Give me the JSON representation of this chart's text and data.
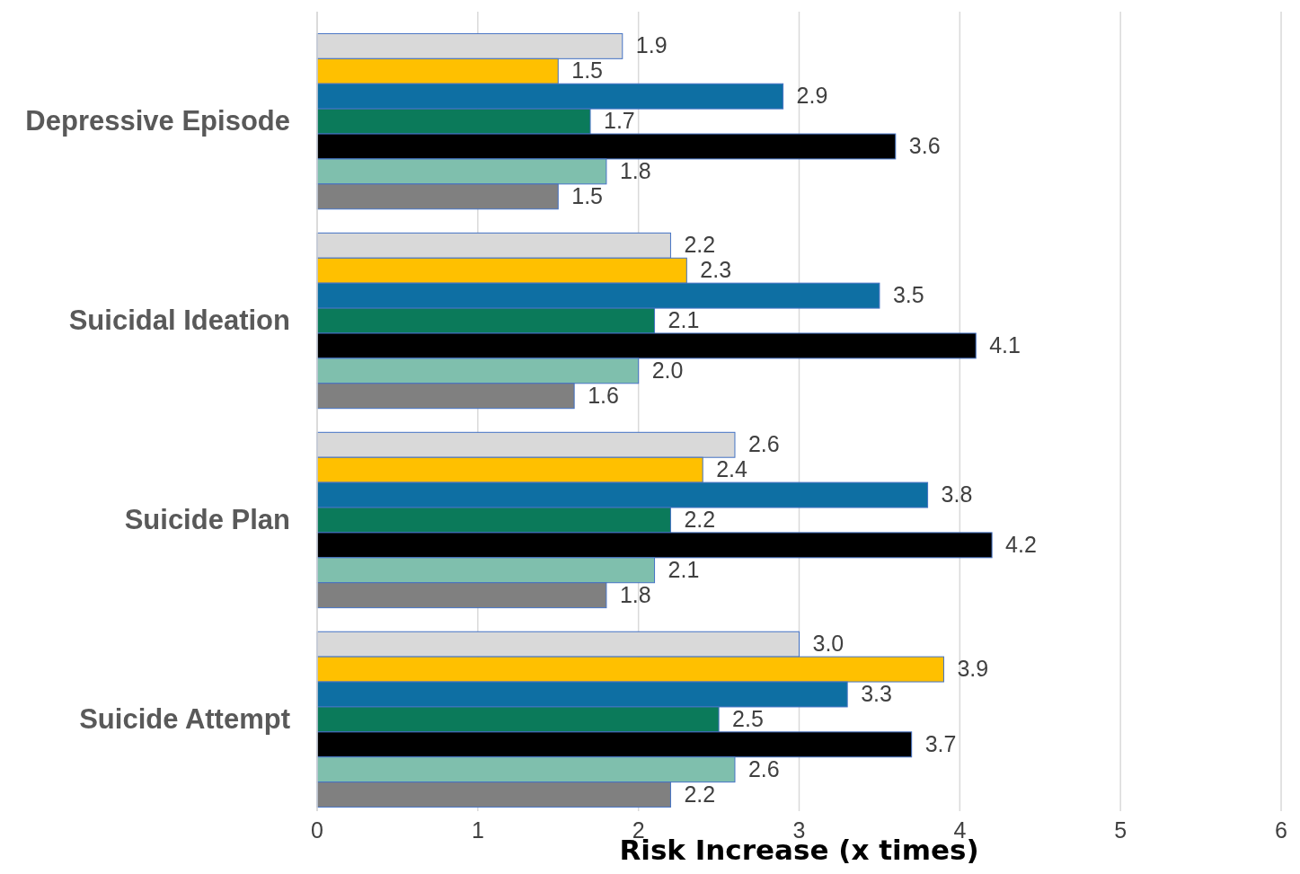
{
  "chart_data": {
    "type": "bar",
    "orientation": "horizontal",
    "xlabel": "Risk Increase (x times)",
    "categories": [
      "Depressive Episode",
      "Suicidal Ideation",
      "Suicide Plan",
      "Suicide Attempt"
    ],
    "series": [
      {
        "color": "#d9d9d9",
        "values": [
          1.9,
          2.2,
          2.6,
          3.0
        ],
        "value_labels": [
          "1.9",
          "2.2",
          "2.6",
          "3.0"
        ]
      },
      {
        "color": "#ffc000",
        "values": [
          1.5,
          2.3,
          2.4,
          3.9
        ],
        "value_labels": [
          "1.5",
          "2.3",
          "2.4",
          "3.9"
        ]
      },
      {
        "color": "#0e6fa3",
        "values": [
          2.9,
          3.5,
          3.8,
          3.3
        ],
        "value_labels": [
          "2.9",
          "3.5",
          "3.8",
          "3.3"
        ]
      },
      {
        "color": "#0b7a5a",
        "values": [
          1.7,
          2.1,
          2.2,
          2.5
        ],
        "value_labels": [
          "1.7",
          "2.1",
          "2.2",
          "2.5"
        ]
      },
      {
        "color": "#000000",
        "values": [
          3.6,
          4.1,
          4.2,
          3.7
        ],
        "value_labels": [
          "3.6",
          "4.1",
          "4.2",
          "3.7"
        ]
      },
      {
        "color": "#7fbfad",
        "values": [
          1.8,
          2.0,
          2.1,
          2.6
        ],
        "value_labels": [
          "1.8",
          "2.0",
          "2.1",
          "2.6"
        ]
      },
      {
        "color": "#808080",
        "values": [
          1.5,
          1.6,
          1.8,
          2.2
        ],
        "value_labels": [
          "1.5",
          "1.6",
          "1.8",
          "2.2"
        ]
      }
    ],
    "xlim": [
      0,
      6
    ],
    "xticks": [
      0,
      1,
      2,
      3,
      4,
      5,
      6
    ],
    "grid": "x"
  }
}
